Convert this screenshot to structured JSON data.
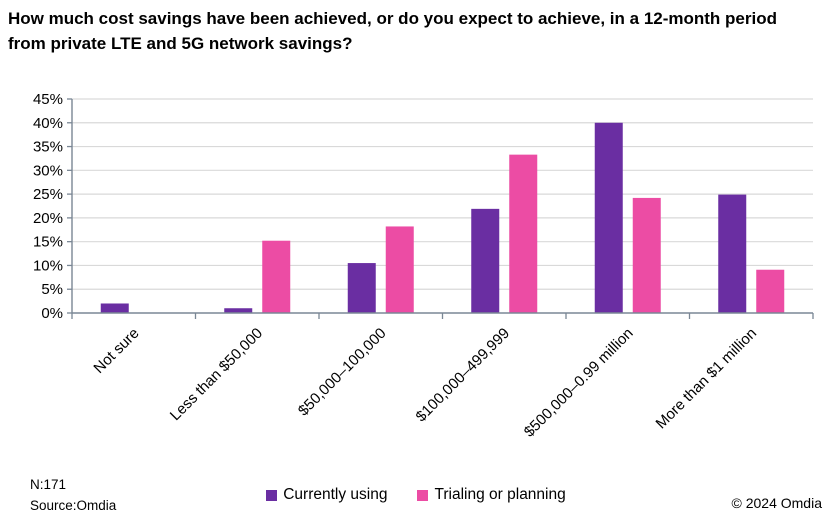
{
  "chart_data": {
    "type": "bar",
    "title": "How much cost savings have been achieved, or do you expect to achieve, in a 12-month period from private LTE and 5G network savings?",
    "categories": [
      "Not sure",
      "Less than $50,000",
      "$50,000–100,000",
      "$100,000–499,999",
      "$500,000–0.99 million",
      "More than $1 million"
    ],
    "series": [
      {
        "name": "Currently using",
        "color": "#6A2EA2",
        "values": [
          2.0,
          1.0,
          10.5,
          21.9,
          40.0,
          24.9
        ]
      },
      {
        "name": "Trialing or planning",
        "color": "#EC4CA4",
        "values": [
          0,
          15.2,
          18.2,
          33.3,
          24.2,
          9.1
        ]
      }
    ],
    "ylim": [
      0,
      45
    ],
    "ytick_step": 5,
    "yticks": [
      "0%",
      "5%",
      "10%",
      "15%",
      "20%",
      "25%",
      "30%",
      "35%",
      "40%",
      "45%"
    ],
    "xlabel": "",
    "ylabel": "",
    "grid": "horizontal",
    "legend_position": "bottom",
    "axis_color": "#7A8795",
    "gridline_color": "#D9D9D9"
  },
  "footer": {
    "n_label": "N:171",
    "source_label": "Source:Omdia",
    "copyright": "© 2024 Omdia"
  }
}
